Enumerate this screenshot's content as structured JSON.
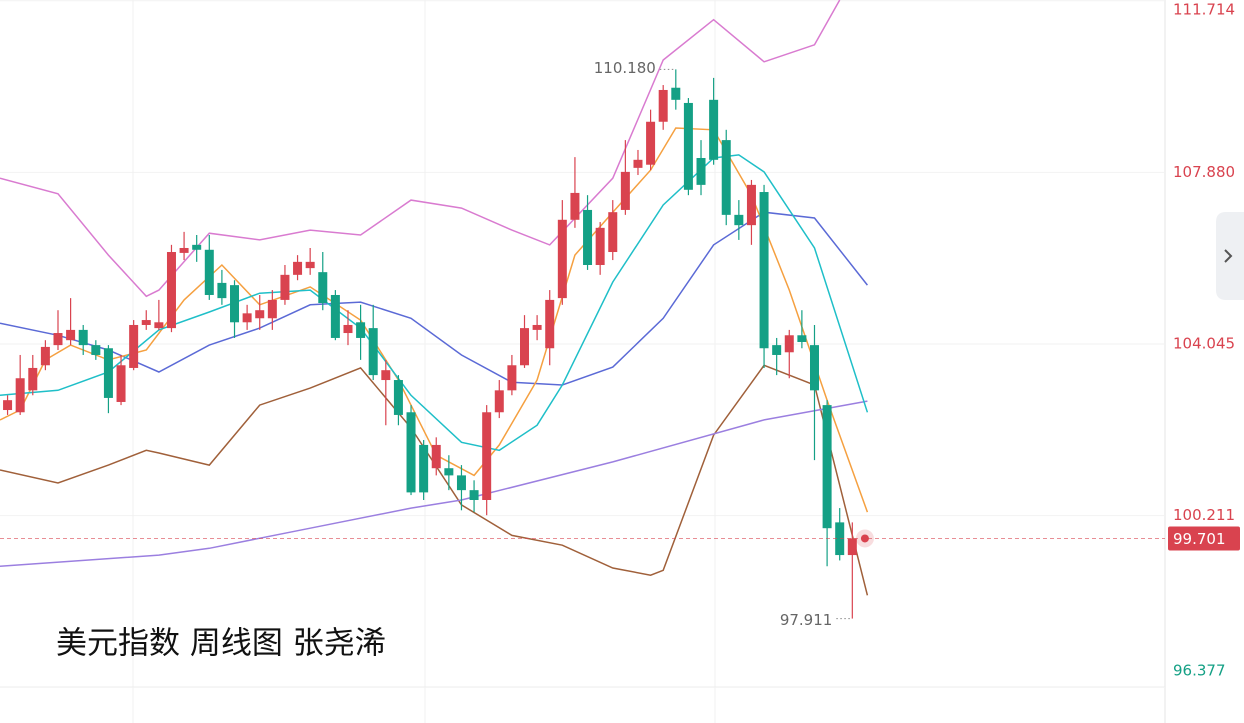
{
  "chart_data": {
    "type": "candlestick",
    "title": "美元指数 周线图 张尧浠",
    "xlim": [
      -0.6,
      91.8
    ],
    "ylim": [
      96.36,
      111.73
    ],
    "yticks": [
      111.714,
      {
        "value": 107.88,
        "label": "107.880"
      },
      104.045,
      100.211,
      96.377
    ],
    "grid": true,
    "up_color": "#d9434f",
    "down_color": "#14a085",
    "open": [
      102.57,
      102.52,
      103.01,
      103.57,
      104.02,
      104.13,
      104.36,
      104.02,
      103.95,
      102.75,
      103.51,
      104.47,
      104.4,
      104.4,
      106.08,
      106.26,
      106.15,
      105.41,
      105.36,
      104.53,
      104.62,
      104.62,
      105.03,
      105.59,
      105.74,
      105.65,
      105.14,
      104.29,
      104.53,
      104.4,
      103.24,
      103.24,
      102.52,
      101.79,
      101.27,
      101.27,
      101.11,
      100.78,
      100.56,
      102.52,
      103.01,
      103.57,
      104.36,
      103.95,
      105.07,
      106.82,
      107.04,
      105.81,
      106.1,
      107.04,
      107.98,
      108.05,
      109.01,
      109.77,
      109.43,
      108.2,
      109.5,
      108.6,
      106.93,
      106.7,
      107.44,
      104.02,
      103.86,
      104.24,
      104.02,
      102.68,
      100.06,
      99.33
    ],
    "high": [
      102.9,
      103.8,
      103.8,
      104.13,
      104.8,
      105.07,
      104.47,
      104.13,
      104.02,
      103.8,
      104.58,
      104.8,
      105.03,
      106.26,
      106.55,
      106.48,
      106.48,
      105.7,
      105.47,
      104.92,
      105.14,
      105.25,
      105.81,
      106.03,
      106.19,
      106.1,
      105.25,
      104.8,
      104.92,
      104.92,
      103.69,
      103.35,
      102.68,
      101.9,
      101.96,
      101.56,
      101.34,
      101.0,
      102.68,
      103.24,
      103.8,
      104.69,
      104.69,
      105.25,
      107.26,
      108.22,
      107.37,
      106.77,
      107.26,
      108.6,
      108.38,
      109.28,
      109.83,
      110.18,
      109.54,
      108.6,
      109.99,
      108.83,
      107.26,
      107.71,
      107.6,
      104.18,
      104.36,
      104.8,
      104.47,
      102.79,
      100.38,
      100.06
    ],
    "low": [
      102.46,
      102.46,
      102.9,
      103.46,
      103.91,
      104.02,
      103.8,
      103.69,
      102.5,
      102.68,
      103.46,
      104.36,
      104.36,
      104.31,
      105.92,
      105.88,
      105.03,
      104.92,
      104.18,
      104.36,
      104.36,
      104.36,
      104.92,
      105.47,
      105.59,
      104.8,
      104.13,
      104.02,
      103.69,
      103.24,
      102.23,
      102.23,
      100.67,
      100.56,
      101.11,
      100.78,
      100.33,
      100.29,
      100.22,
      102.39,
      102.9,
      103.51,
      104.13,
      103.57,
      104.92,
      106.64,
      105.7,
      105.59,
      105.92,
      106.93,
      107.82,
      107.93,
      108.83,
      109.28,
      107.37,
      107.37,
      108.05,
      106.7,
      106.37,
      106.26,
      103.51,
      103.35,
      103.28,
      103.95,
      101.45,
      99.08,
      99.21,
      97.911
    ],
    "close": [
      102.79,
      103.28,
      103.51,
      103.98,
      104.29,
      104.36,
      104.02,
      103.8,
      102.84,
      103.57,
      104.47,
      104.58,
      104.53,
      106.1,
      106.19,
      106.15,
      105.14,
      105.07,
      104.53,
      104.73,
      104.8,
      105.03,
      105.59,
      105.88,
      105.88,
      104.96,
      104.18,
      104.47,
      104.18,
      103.35,
      103.46,
      102.46,
      100.73,
      100.73,
      101.79,
      101.11,
      100.78,
      100.56,
      102.52,
      103.01,
      103.57,
      104.4,
      104.47,
      105.03,
      106.82,
      107.42,
      105.81,
      106.64,
      106.99,
      107.89,
      108.16,
      109.01,
      109.72,
      109.5,
      107.49,
      107.6,
      108.16,
      106.93,
      106.7,
      107.6,
      103.95,
      103.8,
      104.24,
      104.09,
      103.01,
      99.93,
      99.33,
      99.701
    ],
    "annotations": [
      {
        "value": 110.18,
        "label": "110.180"
      },
      97.911
    ],
    "lines": [
      {
        "color": "#d97bd0",
        "x": [
          -0.6,
          4,
          8,
          11,
          12,
          16,
          20,
          24,
          28,
          32,
          36,
          40,
          43,
          48,
          52,
          56,
          60,
          64,
          66
        ],
        "values": [
          107.75,
          107.4,
          106.03,
          105.11,
          105.25,
          106.52,
          106.37,
          106.59,
          106.48,
          107.26,
          107.08,
          106.59,
          106.26,
          107.75,
          110.39,
          111.29,
          110.35,
          110.73,
          111.73
        ]
      },
      {
        "color": "#a0603a",
        "x": [
          -0.6,
          4,
          8,
          11,
          12,
          16,
          20,
          24,
          28,
          32,
          36,
          40,
          44,
          48,
          51,
          52,
          56,
          60,
          64,
          68.2
        ],
        "values": [
          101.23,
          100.94,
          101.34,
          101.67,
          101.61,
          101.34,
          102.68,
          103.06,
          103.51,
          102.17,
          100.45,
          99.77,
          99.55,
          99.04,
          98.88,
          98.99,
          102.01,
          103.57,
          103.13,
          98.43
        ]
      },
      {
        "color": "#5b6ad6",
        "x": [
          -0.6,
          4,
          8,
          12,
          16,
          20,
          24,
          28,
          32,
          36,
          40,
          44,
          48,
          52,
          56,
          60,
          64,
          68.2
        ],
        "values": [
          104.51,
          104.24,
          103.91,
          103.42,
          104.02,
          104.4,
          104.92,
          104.98,
          104.62,
          103.8,
          103.19,
          103.13,
          103.53,
          104.62,
          106.26,
          106.99,
          106.86,
          105.36
        ]
      },
      {
        "color": "#9b7fe0",
        "x": [
          -0.6,
          12,
          16,
          24,
          32,
          36,
          48,
          60,
          68.2
        ],
        "values": [
          99.08,
          99.33,
          99.48,
          99.93,
          100.38,
          100.56,
          101.41,
          102.35,
          102.77
        ]
      },
      {
        "color": "#f5a040",
        "x": [
          -0.6,
          1,
          3,
          5,
          8,
          11,
          14,
          17,
          20,
          24,
          28,
          31,
          34,
          37,
          39,
          42,
          45,
          48,
          51,
          53,
          56,
          59,
          62,
          65,
          68.2
        ],
        "values": [
          102.35,
          102.57,
          103.69,
          104.02,
          103.69,
          103.91,
          105.03,
          105.81,
          104.92,
          105.32,
          104.58,
          103.24,
          101.56,
          101.11,
          101.79,
          103.24,
          106.03,
          106.99,
          107.93,
          108.87,
          108.83,
          107.37,
          105.25,
          102.79,
          100.29
        ]
      },
      {
        "color": "#1fbfc8",
        "x": [
          -0.6,
          4,
          8,
          12,
          16,
          20,
          24,
          28,
          32,
          36,
          39,
          42,
          44,
          48,
          52,
          56,
          58,
          60,
          64,
          68.2
        ],
        "values": [
          102.9,
          103.01,
          103.42,
          104.36,
          104.76,
          105.18,
          105.25,
          104.4,
          102.9,
          101.85,
          101.67,
          102.23,
          103.13,
          105.43,
          107.15,
          108.2,
          108.27,
          107.89,
          106.19,
          102.52
        ]
      }
    ]
  }
}
